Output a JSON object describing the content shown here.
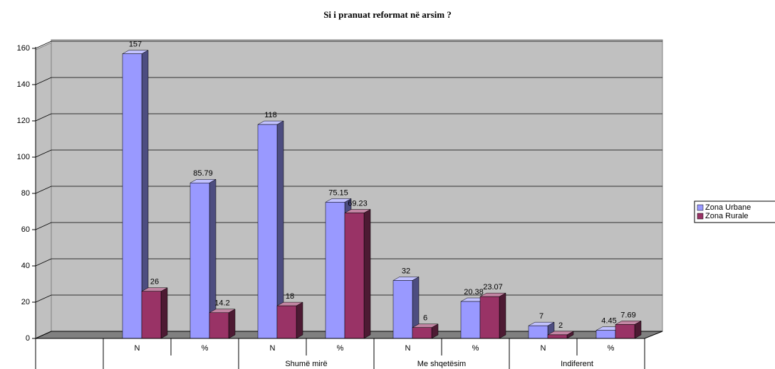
{
  "chart_data": {
    "type": "bar3d",
    "title": "Si i pranuat reformat në arsim ?",
    "categories": [
      null,
      "N",
      "%",
      "N",
      "%",
      "N",
      "%",
      "N",
      "%"
    ],
    "group_labels": [
      null,
      null,
      "Shumë mirë",
      "Me shqetësim",
      "Indiferent"
    ],
    "series": [
      {
        "name": "Zona Urbane",
        "color": "#9999ff",
        "values": [
          null,
          157,
          85.79,
          118,
          75.15,
          32,
          20.38,
          7,
          4.45
        ]
      },
      {
        "name": "Zona Rurale",
        "color": "#993366",
        "values": [
          null,
          26,
          14.2,
          18,
          69.23,
          6,
          23.07,
          2,
          7.69
        ]
      }
    ],
    "ylim": [
      0,
      160
    ],
    "yticks": [
      0,
      20,
      40,
      60,
      80,
      100,
      120,
      140,
      160
    ],
    "grid": true,
    "legend": "right"
  }
}
